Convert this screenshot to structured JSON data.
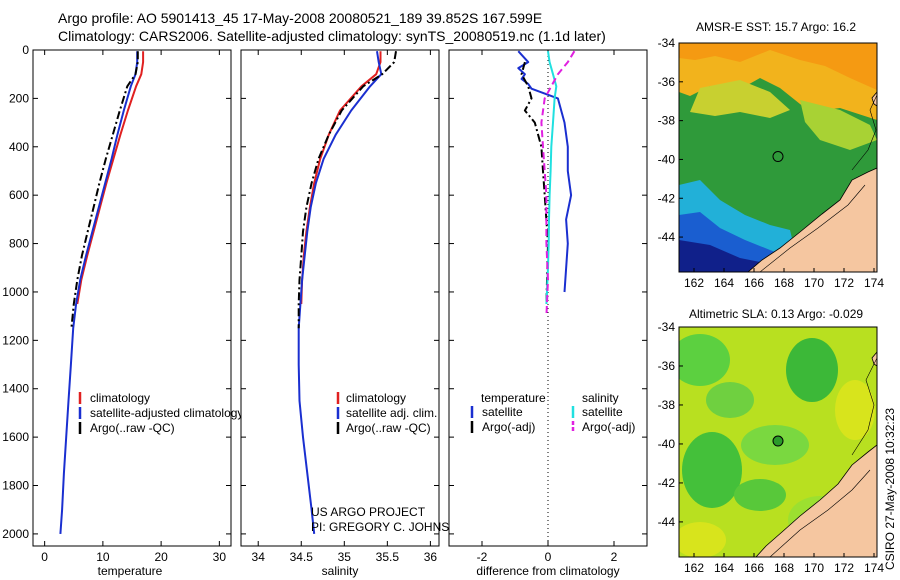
{
  "title": {
    "line1": "Argo profile: AO 5901413_45 17-May-2008 20080521_189 39.852S 167.599E",
    "line2": "Climatology: CARS2006. Satellite-adjusted climatology: synTS_20080519.nc (1.1d later)"
  },
  "credit": {
    "project": "US ARGO PROJECT",
    "pi": "PI: GREGORY C. JOHNSON"
  },
  "timestamp": "CSIRO 27-May-2008 10:32:23",
  "colors": {
    "climatology": "#e02020",
    "satellite": "#1a2fd0",
    "argo": "#000000",
    "sat_salinity": "#20e0e0",
    "argo_salinity": "#e020e0",
    "land": "#f5c6a0"
  },
  "chart_data": [
    {
      "type": "line",
      "id": "temperature",
      "xlabel": "temperature",
      "xlim": [
        -2,
        32
      ],
      "ylim": [
        2050,
        0
      ],
      "xticks": [
        0,
        10,
        20,
        30
      ],
      "yticks": [
        0,
        200,
        400,
        600,
        800,
        1000,
        1200,
        1400,
        1600,
        1800,
        2000
      ],
      "legend": [
        "climatology",
        "satellite-adjusted climatology",
        "Argo(..raw -QC)"
      ],
      "series": [
        {
          "name": "climatology",
          "color": "#e02020",
          "style": "solid",
          "x": [
            16.9,
            16.9,
            16.6,
            15.7,
            14.3,
            13.0,
            11.8,
            10.6,
            9.5,
            8.4,
            7.3,
            6.3,
            5.6
          ],
          "y": [
            5,
            50,
            100,
            150,
            250,
            350,
            450,
            550,
            650,
            750,
            850,
            950,
            1050
          ]
        },
        {
          "name": "satellite-adjusted climatology",
          "color": "#1a2fd0",
          "style": "solid",
          "x": [
            15.9,
            15.9,
            15.6,
            14.8,
            13.6,
            12.5,
            11.5,
            10.4,
            9.3,
            8.2,
            7.1,
            6.1,
            5.4,
            4.9,
            4.5,
            4.1,
            3.7,
            3.3,
            3.0,
            2.7
          ],
          "y": [
            5,
            50,
            100,
            150,
            250,
            350,
            450,
            550,
            650,
            750,
            850,
            950,
            1050,
            1150,
            1300,
            1450,
            1600,
            1750,
            1900,
            2000
          ]
        },
        {
          "name": "Argo(..raw -QC)",
          "color": "#000000",
          "style": "dashdot",
          "x": [
            16.0,
            16.0,
            15.6,
            14.2,
            12.9,
            11.7,
            10.5,
            9.4,
            8.4,
            7.4,
            6.4,
            5.6,
            5.0,
            4.6
          ],
          "y": [
            5,
            50,
            100,
            150,
            250,
            350,
            450,
            550,
            650,
            750,
            850,
            950,
            1050,
            1150
          ]
        }
      ]
    },
    {
      "type": "line",
      "id": "salinity",
      "xlabel": "salinity",
      "xlim": [
        33.8,
        36.1
      ],
      "ylim": [
        2050,
        0
      ],
      "xticks": [
        34,
        34.5,
        35,
        35.5,
        36
      ],
      "legend": [
        "climatology",
        "satellite adj. clim.",
        "Argo(..raw -QC)"
      ],
      "series": [
        {
          "name": "climatology",
          "color": "#e02020",
          "style": "solid",
          "x": [
            35.42,
            35.42,
            35.37,
            35.2,
            34.95,
            34.82,
            34.72,
            34.65,
            34.6,
            34.56,
            34.53,
            34.51,
            34.5
          ],
          "y": [
            5,
            50,
            100,
            150,
            250,
            350,
            450,
            550,
            650,
            750,
            850,
            950,
            1050
          ]
        },
        {
          "name": "satellite adj. clim.",
          "color": "#1a2fd0",
          "style": "solid",
          "x": [
            35.38,
            35.4,
            35.43,
            35.3,
            35.08,
            34.9,
            34.76,
            34.67,
            34.61,
            34.57,
            34.54,
            34.51,
            34.49,
            34.47,
            34.47,
            34.48,
            34.52,
            34.57,
            34.62,
            34.65
          ],
          "y": [
            5,
            50,
            100,
            150,
            250,
            350,
            450,
            550,
            650,
            750,
            850,
            950,
            1050,
            1150,
            1300,
            1450,
            1600,
            1750,
            1900,
            2000
          ]
        },
        {
          "name": "Argo(..raw -QC)",
          "color": "#000000",
          "style": "dashdot",
          "x": [
            35.6,
            35.58,
            35.44,
            35.22,
            34.97,
            34.82,
            34.7,
            34.62,
            34.56,
            34.52,
            34.5,
            34.48,
            34.47,
            34.47
          ],
          "y": [
            5,
            50,
            100,
            150,
            250,
            350,
            450,
            550,
            650,
            750,
            850,
            950,
            1050,
            1150
          ]
        }
      ]
    },
    {
      "type": "line",
      "id": "difference",
      "xlabel": "difference from climatology",
      "xlim": [
        -3,
        3
      ],
      "ylim": [
        2050,
        0
      ],
      "xticks": [
        -2,
        0,
        2
      ],
      "legend_headers": [
        "temperature",
        "salinity"
      ],
      "legend": [
        "satellite",
        "Argo(-adj)",
        "satellite",
        "Argo(-adj)"
      ],
      "series": [
        {
          "name": "satellite",
          "color": "#1a2fd0",
          "style": "solid",
          "group": "temperature",
          "x": [
            -0.9,
            -0.6,
            -0.9,
            -0.7,
            -0.8,
            -0.6,
            -0.5,
            0.3,
            0.5,
            0.6,
            0.6,
            0.7,
            0.55,
            0.6,
            0.5
          ],
          "y": [
            5,
            50,
            75,
            100,
            120,
            140,
            160,
            200,
            300,
            400,
            500,
            600,
            700,
            800,
            1000
          ]
        },
        {
          "name": "Argo(-adj)",
          "color": "#000000",
          "style": "dashdot",
          "group": "temperature",
          "x": [
            -0.7,
            -0.8,
            -0.6,
            -0.5,
            -0.7,
            -0.4,
            -0.2,
            -0.15,
            -0.1,
            0,
            -0.05
          ],
          "y": [
            50,
            100,
            150,
            200,
            250,
            300,
            400,
            500,
            600,
            800,
            1050
          ]
        },
        {
          "name": "satellite",
          "color": "#20e0e0",
          "style": "solid",
          "group": "salinity",
          "x": [
            0,
            0.05,
            0.15,
            0.25,
            0.2,
            0.15,
            0.1,
            0.08,
            0.05,
            0.03,
            0.02,
            0,
            -0.05
          ],
          "y": [
            5,
            50,
            100,
            150,
            200,
            300,
            400,
            500,
            600,
            700,
            800,
            900,
            1050
          ]
        },
        {
          "name": "Argo(-adj)",
          "color": "#e020e0",
          "style": "dashed",
          "group": "salinity",
          "x": [
            0.8,
            0.6,
            0.3,
            0.1,
            -0.1,
            -0.2,
            -0.15,
            -0.1,
            -0.05,
            -0.05,
            0,
            -0.05
          ],
          "y": [
            5,
            50,
            100,
            150,
            200,
            300,
            400,
            500,
            600,
            800,
            950,
            1100
          ]
        }
      ]
    },
    {
      "type": "heatmap",
      "id": "sst_map",
      "title": "AMSR-E SST: 15.7 Argo: 16.2",
      "xlim": [
        161,
        174.2
      ],
      "ylim": [
        -45.8,
        -34
      ],
      "xticks": [
        162,
        164,
        166,
        168,
        170,
        172,
        174
      ],
      "yticks": [
        -34,
        -36,
        -38,
        -40,
        -42,
        -44
      ],
      "marker": {
        "lon": 167.6,
        "lat": -39.85,
        "style": "open-circle"
      }
    },
    {
      "type": "heatmap",
      "id": "sla_map",
      "title": "Altimetric SLA: 0.13 Argo: -0.029",
      "xlim": [
        161,
        174.2
      ],
      "ylim": [
        -45.8,
        -34
      ],
      "xticks": [
        162,
        164,
        166,
        168,
        170,
        172,
        174
      ],
      "yticks": [
        -34,
        -36,
        -38,
        -40,
        -42,
        -44
      ],
      "marker": {
        "lon": 167.6,
        "lat": -39.85,
        "style": "filled-circle"
      }
    }
  ]
}
